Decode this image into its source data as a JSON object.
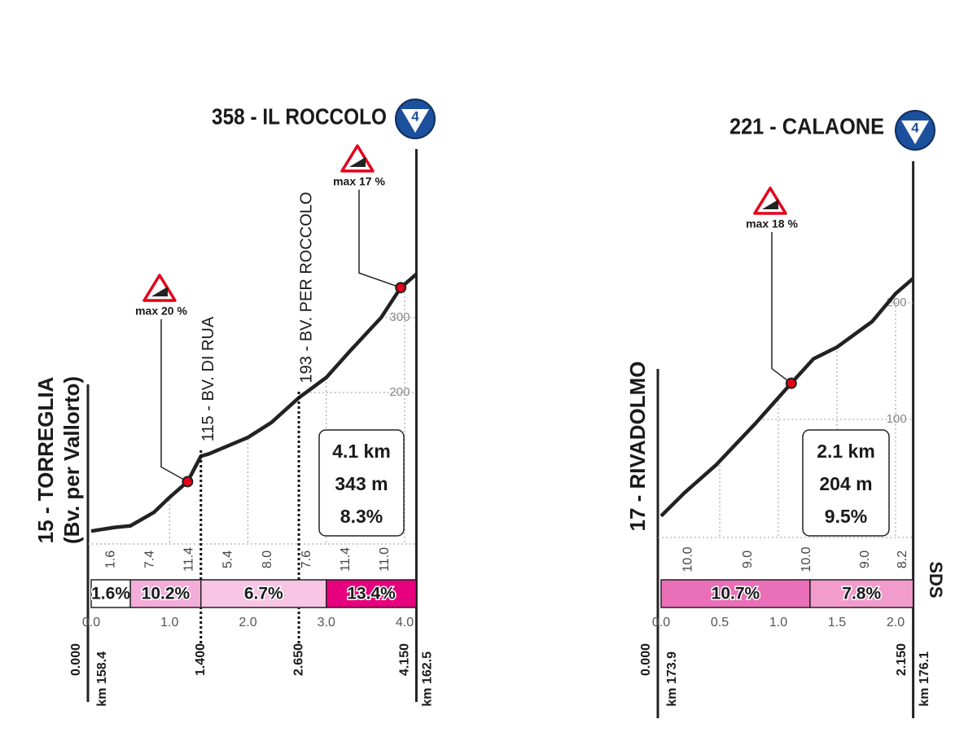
{
  "logo": "SDS",
  "chart_data": [
    {
      "type": "profile",
      "title": "358 - IL ROCCOLO",
      "badge": "4",
      "start_label": [
        "15 - TORREGLIA",
        "(Bv. per Vallorto)"
      ],
      "x": [
        0,
        0.3,
        0.5,
        0.8,
        1.0,
        1.23,
        1.4,
        1.5,
        2.0,
        2.3,
        2.65,
        3.0,
        3.3,
        3.7,
        3.95,
        4.15
      ],
      "values": [
        15,
        20,
        22,
        40,
        60,
        81,
        115,
        118,
        140,
        160,
        193,
        220,
        255,
        300,
        340,
        358
      ],
      "color": "#222222",
      "xlim": [
        0,
        4.15
      ],
      "ylim": [
        0,
        400
      ],
      "xticks": [
        {
          "value": 0,
          "label": "0.0"
        },
        {
          "value": 1,
          "label": "1.0"
        },
        {
          "value": 2,
          "label": "2.0"
        },
        {
          "value": 3,
          "label": "3.0"
        },
        {
          "value": 4,
          "label": "4.0"
        }
      ],
      "yticks": [
        200,
        300
      ],
      "waypoints": [
        {
          "label": "115 - BV. DI RUA",
          "x": 1.4
        },
        {
          "label": "193 - BV. PER ROCCOLO",
          "x": 2.65
        }
      ],
      "max_gradients": [
        {
          "label": "max 20 %",
          "x": 1.23,
          "y": 81
        },
        {
          "label": "max 17 %",
          "x": 3.95,
          "y": 340
        }
      ],
      "summary": [
        "4.1 km",
        "343 m",
        "8.3%"
      ],
      "km_gradients": {
        "x": [
          0.25,
          0.75,
          1.25,
          1.75,
          2.25,
          2.75,
          3.25,
          3.75
        ],
        "values": [
          1.6,
          7.4,
          11.4,
          5.4,
          8,
          7.6,
          11.4,
          11
        ],
        "value_labels": [
          "1.6",
          "7.4",
          "11.4",
          "5.4",
          "8.0",
          "7.6",
          "11.4",
          "11.0"
        ]
      },
      "segments": [
        {
          "label": "1.6%",
          "value": 1.6,
          "from": 0,
          "to": 0.5,
          "color": "#ffffff"
        },
        {
          "label": "10.2%",
          "value": 10.2,
          "from": 0.5,
          "to": 1.4,
          "color": "#f4acd9"
        },
        {
          "label": "6.7%",
          "value": 6.7,
          "from": 1.4,
          "to": 3.0,
          "color": "#f8c5e4"
        },
        {
          "label": "13.4%",
          "value": 13.4,
          "from": 3.0,
          "to": 4.15,
          "color": "#e6007e"
        }
      ],
      "distances": [
        {
          "value": 0,
          "label": "0.000"
        },
        {
          "value": 1.4,
          "label": "1.400"
        },
        {
          "value": 2.65,
          "label": "2.650"
        },
        {
          "value": 4.15,
          "label": "4.150"
        }
      ],
      "km_start": "km 158.4",
      "km_end": "km 162.5"
    },
    {
      "type": "profile",
      "title": "221 - CALAONE",
      "badge": "4",
      "start_label": [
        "17 - RIVADOLMO"
      ],
      "x": [
        0,
        0.2,
        0.47,
        0.8,
        1.11,
        1.3,
        1.5,
        1.8,
        2.0,
        2.15
      ],
      "values": [
        17,
        37,
        61,
        96,
        131,
        152,
        162,
        184,
        208,
        221
      ],
      "color": "#222222",
      "xlim": [
        0,
        2.15
      ],
      "ylim": [
        0,
        250
      ],
      "xticks": [
        {
          "value": 0,
          "label": "0.0"
        },
        0.5,
        {
          "value": 1,
          "label": "1.0"
        },
        1.5,
        {
          "value": 2,
          "label": "2.0"
        }
      ],
      "yticks": [
        100,
        200
      ],
      "waypoints": [],
      "max_gradients": [
        {
          "label": "max 18 %",
          "x": 1.11,
          "y": 131
        }
      ],
      "summary": [
        "2.1 km",
        "204 m",
        "9.5%"
      ],
      "km_gradients": {
        "x": [
          0.23,
          0.74,
          1.24,
          1.74,
          2.06
        ],
        "values": [
          10,
          9,
          10,
          9,
          8.2
        ],
        "value_labels": [
          "10.0",
          "9.0",
          "10.0",
          "9.0",
          "8.2"
        ]
      },
      "segments": [
        {
          "label": "10.7%",
          "value": 10.7,
          "from": 0,
          "to": 1.27,
          "color": "#e96fb8"
        },
        {
          "label": "7.8%",
          "value": 7.8,
          "from": 1.27,
          "to": 2.15,
          "color": "#f19ccd"
        }
      ],
      "distances": [
        {
          "value": 0,
          "label": "0.000"
        },
        {
          "value": 2.15,
          "label": "2.150"
        }
      ],
      "km_start": "km 173.9",
      "km_end": "km 176.1"
    }
  ]
}
